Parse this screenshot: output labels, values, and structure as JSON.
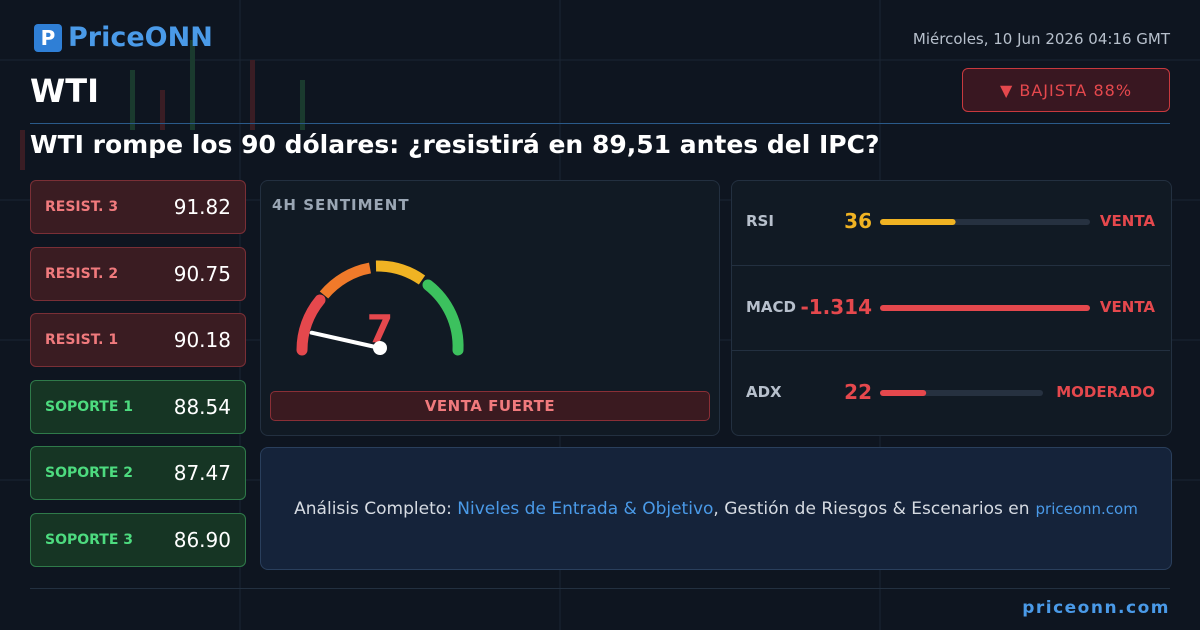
{
  "header": {
    "logo": "PriceONN",
    "date": "Miércoles, 10 Jun 2026 04:16 GMT",
    "symbol": "WTI",
    "badge": "▼ BAJISTA 88%"
  },
  "headline": "WTI rompe los 90 dólares: ¿resistirá en 89,51 antes del IPC?",
  "resistances": [
    {
      "label": "RESIST. 3",
      "value": "91.82"
    },
    {
      "label": "RESIST. 2",
      "value": "90.75"
    },
    {
      "label": "RESIST. 1",
      "value": "90.18"
    }
  ],
  "supports": [
    {
      "label": "SOPORTE 1",
      "value": "88.54"
    },
    {
      "label": "SOPORTE 2",
      "value": "87.47"
    },
    {
      "label": "SOPORTE 3",
      "value": "86.90"
    }
  ],
  "sentiment": {
    "title": "4H SENTIMENT",
    "value": 7,
    "verdict": "VENTA FUERTE"
  },
  "indicators": [
    {
      "name": "RSI",
      "value": 36,
      "signal": "VENTA",
      "color": "#f0b323"
    },
    {
      "name": "MACD",
      "value": -1.314,
      "signal": "VENTA",
      "color": "#e5484d"
    },
    {
      "name": "ADX",
      "value": 22,
      "signal": "MODERADO",
      "color": "#e5484d"
    }
  ],
  "cta": {
    "lead": "Análisis Completo:",
    "link": "Niveles de Entrada & Objetivo",
    "rest": ", Gestión de Riesgos & Escenarios en",
    "site": "priceonn.com"
  },
  "footer": {
    "site": "priceonn.com"
  }
}
